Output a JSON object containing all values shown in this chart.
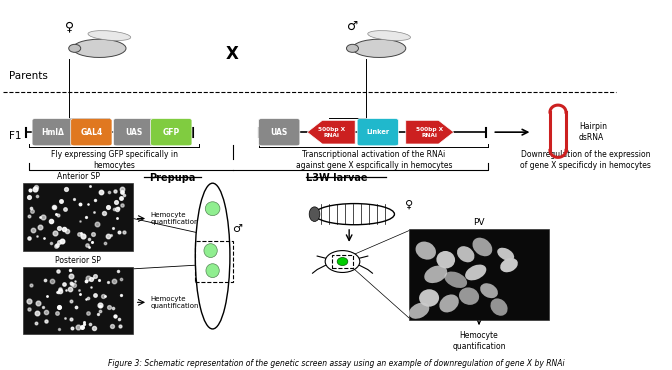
{
  "title": "Figure 3: Schematic representation of the genetic screen assay using an example of downregulation of gene X by RNAi",
  "background_color": "#ffffff",
  "parents_label": "Parents",
  "f1_label": "F1",
  "cross_symbol": "X",
  "female_symbol": "♀",
  "male_symbol": "♂",
  "text_left": "Fly expressing GFP specifically in\nhemocytes",
  "text_right": "Transcriptional activation of the RNAi\nagainst gene X espcifically in hemocytes",
  "text_far_right": "Downregulation of the expression\nof gene X specificdy in hemocytes",
  "hairpin_label": "Hairpin\ndsRNA",
  "prepupa_label": "Prepupa",
  "l3w_label": "L3W larvae",
  "anterior_sp": "Anterior SP",
  "posterior_sp": "Posterior SP",
  "pv_label": "PV",
  "hemocyte_quant": "Hemocyte\nquantification",
  "box_hml": "#888888",
  "box_gal4": "#e07820",
  "box_uas": "#888888",
  "box_gfp": "#80cc40",
  "box_rnai": "#cc2020",
  "box_linker": "#20b8cc",
  "hairpin_color": "#cc2020"
}
